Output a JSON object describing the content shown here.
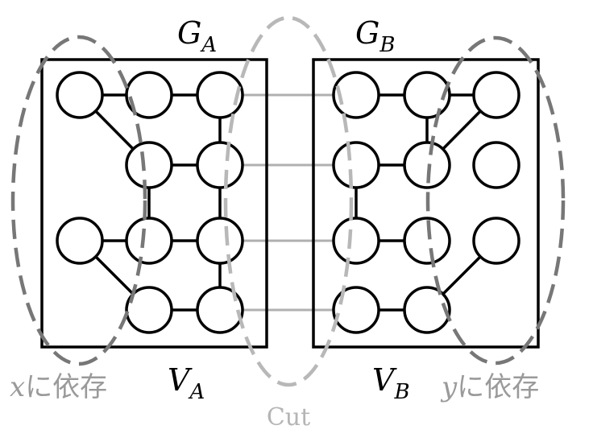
{
  "graph_a": {
    "title_main": "G",
    "title_sub": "A",
    "vertex_main": "V",
    "vertex_sub": "A"
  },
  "graph_b": {
    "title_main": "G",
    "title_sub": "B",
    "vertex_main": "V",
    "vertex_sub": "B"
  },
  "region_x": {
    "var": "x",
    "label": "に依存"
  },
  "region_y": {
    "var": "y",
    "label": "に依存"
  },
  "cut": {
    "label": "Cut"
  },
  "colors": {
    "node": "#000000",
    "cut_edge": "#b0b0b0",
    "dep_ellipse": "#777777",
    "cut_ellipse": "#b8b8b8"
  }
}
